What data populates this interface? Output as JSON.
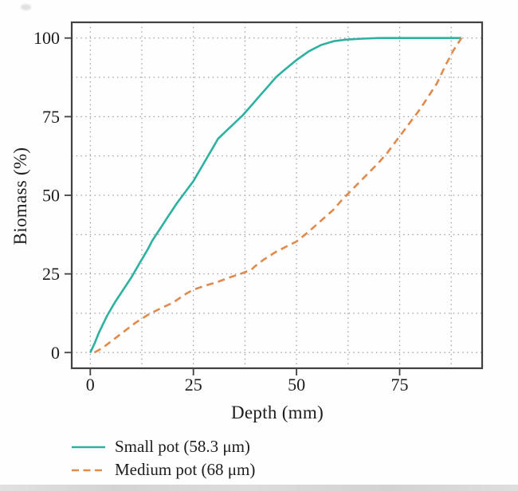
{
  "figure": {
    "background": "#fefefe",
    "frame_color": "#414141",
    "grid_color": "#9a9a9a",
    "text_color": "#1c1c1c",
    "bottom_bar_color": "#d8d8d8"
  },
  "chart_data": {
    "type": "line",
    "title": "",
    "xlabel": "Depth (mm)",
    "ylabel": "Biomass (%)",
    "xlim": [
      -4.5,
      95
    ],
    "ylim": [
      -5,
      105
    ],
    "x_ticks": [
      0,
      25,
      50,
      75
    ],
    "y_ticks": [
      0,
      25,
      50,
      75,
      100
    ],
    "grid": {
      "on": true,
      "style": "dotted",
      "step_x": 12.5,
      "step_y": 12.5
    },
    "legend_position": "below-left",
    "series": [
      {
        "name": "Small pot (58.3 μm)",
        "color": "#2eb1a0",
        "style": "solid",
        "x": [
          0,
          1,
          2,
          3,
          4,
          5,
          6,
          8,
          10,
          12,
          14,
          15,
          17,
          19,
          21,
          23,
          25,
          27,
          29,
          31,
          33,
          35,
          37,
          39,
          41,
          43,
          45,
          47,
          50,
          53,
          56,
          59,
          62,
          66,
          70,
          75,
          80,
          85,
          90
        ],
        "y": [
          0,
          2.8,
          6,
          8.8,
          11.5,
          13.8,
          16,
          20,
          24,
          28.5,
          33,
          35.5,
          39.5,
          43.5,
          47.5,
          51,
          54.5,
          59,
          63.5,
          68,
          70.5,
          73,
          75.5,
          78.5,
          81.5,
          84.5,
          87.5,
          89.8,
          93,
          95.8,
          97.8,
          99,
          99.5,
          99.8,
          100,
          100,
          100,
          100,
          100
        ]
      },
      {
        "name": "Medium pot (68 μm)",
        "color": "#e08a4c",
        "style": "dashed",
        "x": [
          1,
          3,
          5,
          8,
          11,
          14,
          17,
          20,
          23,
          25,
          28,
          31,
          34,
          37,
          39,
          40,
          42,
          45,
          48,
          50,
          53,
          56,
          59,
          61,
          64,
          67,
          70,
          72,
          74,
          76,
          78,
          80,
          82,
          84,
          86,
          88,
          90
        ],
        "y": [
          0,
          1.5,
          3.5,
          6.5,
          9.5,
          12,
          14,
          15.8,
          18.5,
          20,
          21.3,
          22.5,
          24,
          25.3,
          26.3,
          27.5,
          29.5,
          32,
          34,
          35.3,
          38.5,
          42,
          45.5,
          48.5,
          52.5,
          56.5,
          60.5,
          63.5,
          67,
          70.5,
          74,
          77.5,
          81.5,
          85.5,
          91,
          96,
          100
        ]
      }
    ]
  }
}
